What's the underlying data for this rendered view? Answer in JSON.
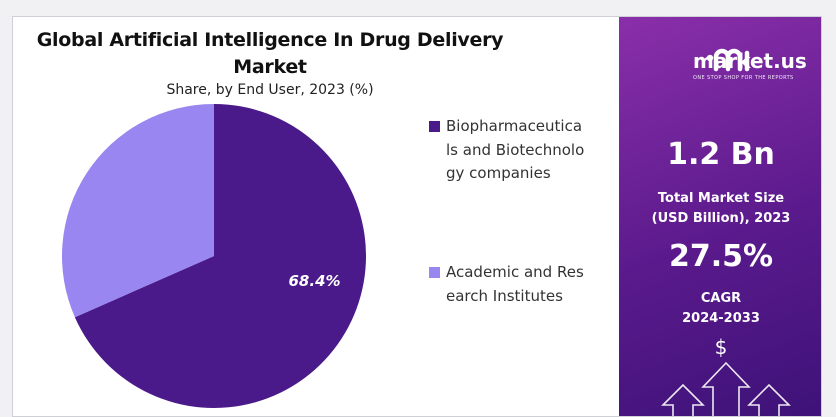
{
  "chart_data": {
    "type": "pie",
    "title": "Global Artificial Intelligence In Drug Delivery Market",
    "subtitle": "Share, by End User, 2023 (%)",
    "slices": [
      {
        "name": "Biopharmaceuticals and Biotechnology companies",
        "value": 68.4,
        "label": "68.4%",
        "color": "#4a1a8a"
      },
      {
        "name": "Academic and Research Institutes",
        "value": 31.6,
        "label": "",
        "color": "#9a86f0"
      }
    ],
    "legend_position": "right"
  },
  "legend": {
    "items": [
      {
        "label": "Biopharmaceuticals and Biotechnology companies",
        "color": "#4a1a8a"
      },
      {
        "label": "Academic and Research Institutes",
        "color": "#9a86f0"
      }
    ]
  },
  "panel": {
    "brand": "market.us",
    "tagline": "ONE STOP SHOP FOR THE REPORTS",
    "market_size_value": "1.2 Bn",
    "market_size_label": "Total Market Size (USD Billion), 2023",
    "cagr_value": "27.5%",
    "cagr_label": "CAGR 2024-2033",
    "dollar_symbol": "$"
  }
}
